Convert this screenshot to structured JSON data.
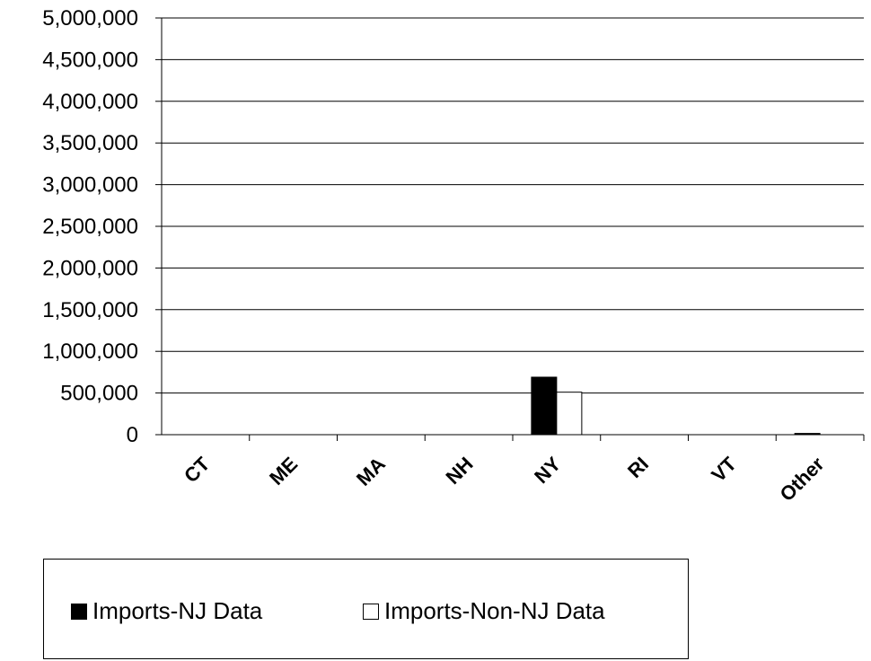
{
  "chart_data": {
    "type": "bar",
    "categories": [
      "CT",
      "ME",
      "MA",
      "NH",
      "NY",
      "RI",
      "VT",
      "Other"
    ],
    "series": [
      {
        "name": "Imports-NJ Data",
        "color": "#000000",
        "values": [
          0,
          0,
          0,
          0,
          690000,
          0,
          0,
          15000
        ]
      },
      {
        "name": "Imports-Non-NJ Data",
        "color": "#ffffff",
        "values": [
          0,
          0,
          0,
          0,
          510000,
          0,
          0,
          0
        ]
      }
    ],
    "ylim": [
      0,
      5000000
    ],
    "yticks": [
      "0",
      "500,000",
      "1,000,000",
      "1,500,000",
      "2,000,000",
      "2,500,000",
      "3,000,000",
      "3,500,000",
      "4,000,000",
      "4,500,000",
      "5,000,000"
    ],
    "grid": true,
    "legend_position": "bottom"
  }
}
